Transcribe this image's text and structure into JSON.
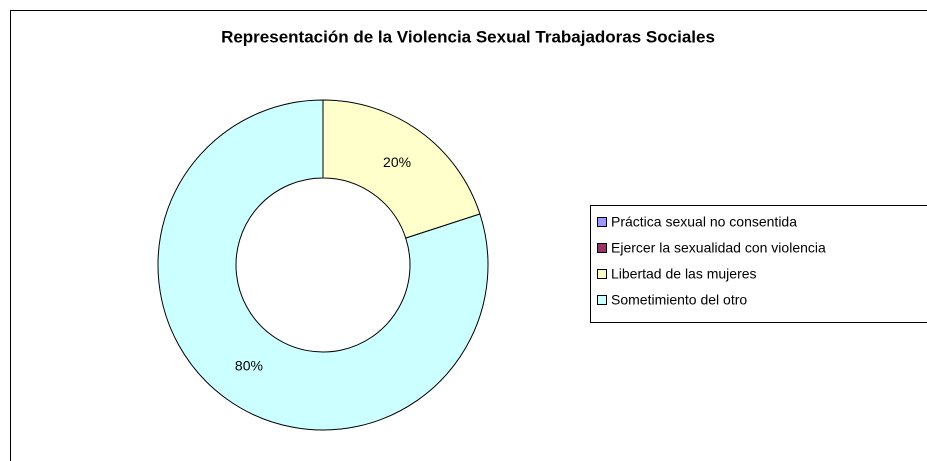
{
  "chart_data": {
    "type": "donut",
    "title": "Representación de la Violencia Sexual Trabajadoras Sociales",
    "categories": [
      "Práctica sexual no consentida",
      "Ejercer la sexualidad con violencia",
      "Libertad de las mujeres",
      "Sometimiento del otro"
    ],
    "values": [
      0,
      0,
      20,
      80
    ],
    "value_labels": [
      null,
      null,
      "20%",
      "80%"
    ],
    "colors": [
      "#9999ff",
      "#993366",
      "#ffffcc",
      "#ccffff"
    ],
    "legend": "right"
  }
}
